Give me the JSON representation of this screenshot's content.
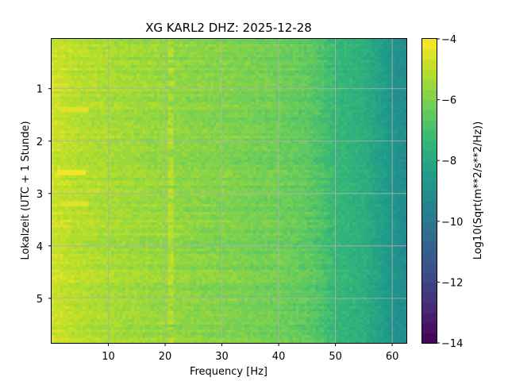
{
  "chart_data": {
    "type": "heatmap",
    "title": "XG KARL2  DHZ: 2025-12-28",
    "xlabel": "Frequency [Hz]",
    "ylabel": "Lokalzeit (UTC + 1 Stunde)",
    "xlim": [
      0,
      62.5
    ],
    "ylim": [
      5.85,
      0.05
    ],
    "xticks": [
      10,
      20,
      30,
      40,
      50,
      60
    ],
    "yticks": [
      1,
      2,
      3,
      4,
      5
    ],
    "grid": true,
    "colormap": "viridis",
    "colorbar": {
      "label": "Log10(Sqrt(m**2/s**2/Hz))",
      "range": [
        -14,
        -4
      ],
      "ticks": [
        -4,
        -6,
        -8,
        -10,
        -12,
        -14
      ],
      "levels": 30
    },
    "features": {
      "freq_profile": [
        {
          "f": 0,
          "v": -4.7
        },
        {
          "f": 5,
          "v": -5.1
        },
        {
          "f": 10,
          "v": -5.3
        },
        {
          "f": 20,
          "v": -5.6
        },
        {
          "f": 30,
          "v": -5.9
        },
        {
          "f": 40,
          "v": -6.2
        },
        {
          "f": 45,
          "v": -6.5
        },
        {
          "f": 48,
          "v": -6.9
        },
        {
          "f": 50,
          "v": -7.3
        },
        {
          "f": 55,
          "v": -7.7
        },
        {
          "f": 58,
          "v": -8.3
        },
        {
          "f": 60,
          "v": -8.8
        },
        {
          "f": 62.5,
          "v": -9.2
        }
      ],
      "persistent_line_hz": 21.2,
      "hot_spots": [
        {
          "f": 3.5,
          "t": 2.6,
          "v": -4.3
        },
        {
          "f": 4.0,
          "t": 3.2,
          "v": -4.5
        },
        {
          "f": 4.0,
          "t": 1.4,
          "v": -4.6
        }
      ]
    }
  }
}
